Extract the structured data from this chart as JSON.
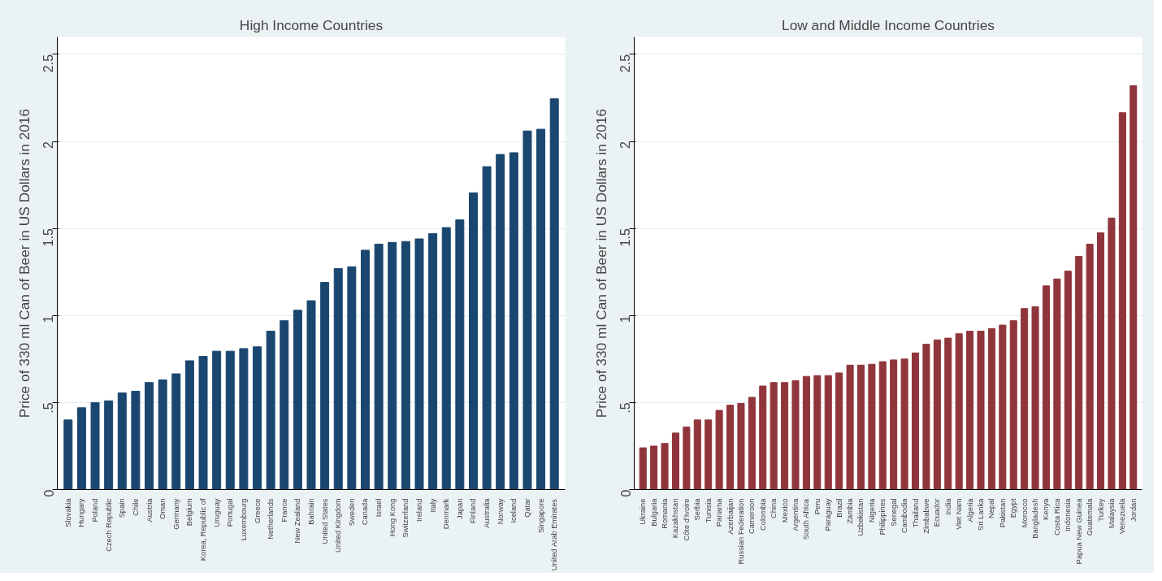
{
  "chart_data": [
    {
      "type": "bar",
      "title": "High Income Countries",
      "ylabel": "Price of 330 ml Can of Beer in US Dollars in 2016",
      "categories": [
        "Slovakia",
        "Hungary",
        "Poland",
        "Czech Republic",
        "Spain",
        "Chile",
        "Austria",
        "Oman",
        "Germany",
        "Belgium",
        "Korea, Republic of",
        "Uruguay",
        "Portugal",
        "Luxembourg",
        "Greece",
        "Netherlands",
        "France",
        "New Zealand",
        "Bahrain",
        "United States",
        "United Kingdom",
        "Sweden",
        "Canada",
        "Israel",
        "Hong Kong",
        "Switzerland",
        "Ireland",
        "Italy",
        "Denmark",
        "Japan",
        "Finland",
        "Australia",
        "Norway",
        "Iceland",
        "Qatar",
        "Singapore",
        "United Arab Emirates"
      ],
      "values": [
        0.4,
        0.47,
        0.5,
        0.51,
        0.555,
        0.565,
        0.615,
        0.63,
        0.665,
        0.74,
        0.765,
        0.795,
        0.795,
        0.81,
        0.82,
        0.91,
        0.97,
        1.03,
        1.085,
        1.19,
        1.27,
        1.28,
        1.375,
        1.41,
        1.42,
        1.425,
        1.44,
        1.47,
        1.505,
        1.55,
        1.705,
        1.855,
        1.925,
        1.935,
        2.06,
        2.07,
        2.245
      ],
      "color": "#1a476f",
      "ylim": [
        0,
        2.6
      ],
      "yticks": [
        0,
        {
          "value": 0.5,
          "label": ".5"
        },
        1,
        1.5,
        2,
        2.5
      ],
      "grid": "y"
    },
    {
      "type": "bar",
      "title": "Low and Middle Income Countries",
      "ylabel": "Price of 330 ml Can of Beer in US Dollars in 2016",
      "categories": [
        "Ukraine",
        "Bulgaria",
        "Romania",
        "Kazakhstan",
        "Côte d'Ivoire",
        "Serbia",
        "Tunisia",
        "Panama",
        "Azerbaijan",
        "Russian Federation",
        "Cameroon",
        "Colombia",
        "China",
        "Mexico",
        "Argentina",
        "South Africa",
        "Peru",
        "Paraguay",
        "Brazil",
        "Zambia",
        "Uzbekistan",
        "Nigeria",
        "Philippines",
        "Senegal",
        "Cambodia",
        "Thailand",
        "Zimbabwe",
        "Ecuador",
        "India",
        "Viet Nam",
        "Algeria",
        "Sri Lanka",
        "Nepal",
        "Pakistan",
        "Egypt",
        "Morocco",
        "Bangladesh",
        "Kenya",
        "Costa Rica",
        "Indonesia",
        "Papua New Guinea",
        "Guatemala",
        "Turkey",
        "Malaysia",
        "Venezuela",
        "Jordan"
      ],
      "values": [
        0.24,
        0.25,
        0.265,
        0.325,
        0.36,
        0.4,
        0.4,
        0.455,
        0.485,
        0.495,
        0.53,
        0.595,
        0.615,
        0.615,
        0.625,
        0.65,
        0.655,
        0.655,
        0.67,
        0.715,
        0.715,
        0.72,
        0.735,
        0.745,
        0.75,
        0.785,
        0.835,
        0.86,
        0.87,
        0.895,
        0.91,
        0.91,
        0.925,
        0.945,
        0.97,
        1.04,
        1.05,
        1.17,
        1.21,
        1.255,
        1.34,
        1.41,
        1.475,
        1.56,
        2.165,
        2.32
      ],
      "color": "#90353b",
      "ylim": [
        0,
        2.6
      ],
      "yticks": [
        0,
        {
          "value": 0.5,
          "label": ".5"
        },
        1,
        1.5,
        2,
        2.5
      ],
      "grid": "y"
    }
  ]
}
